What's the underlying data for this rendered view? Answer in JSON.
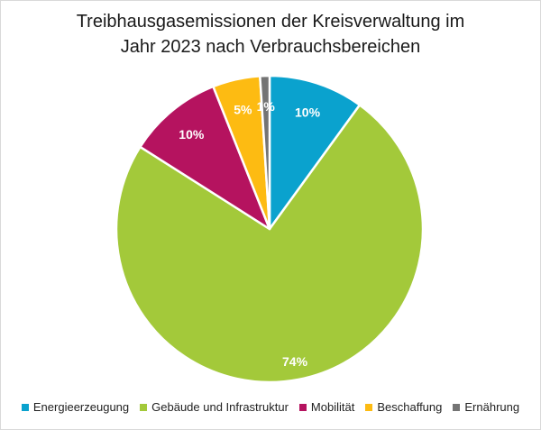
{
  "chart_data": {
    "type": "pie",
    "title_line1": "Treibhausgasemissionen der Kreisverwaltung im",
    "title_line2": "Jahr 2023 nach Verbrauchsbereichen",
    "categories": [
      "Energieerzeugung",
      "Gebäude und Infrastruktur",
      "Mobilität",
      "Beschaffung",
      "Ernährung"
    ],
    "values": [
      10,
      74,
      10,
      5,
      1
    ],
    "labels": [
      "10%",
      "74%",
      "10%",
      "5%",
      "1%"
    ],
    "colors": [
      "#0aa2ce",
      "#a3c93a",
      "#b5135f",
      "#fdbb12",
      "#747474"
    ],
    "legend_position": "bottom"
  }
}
